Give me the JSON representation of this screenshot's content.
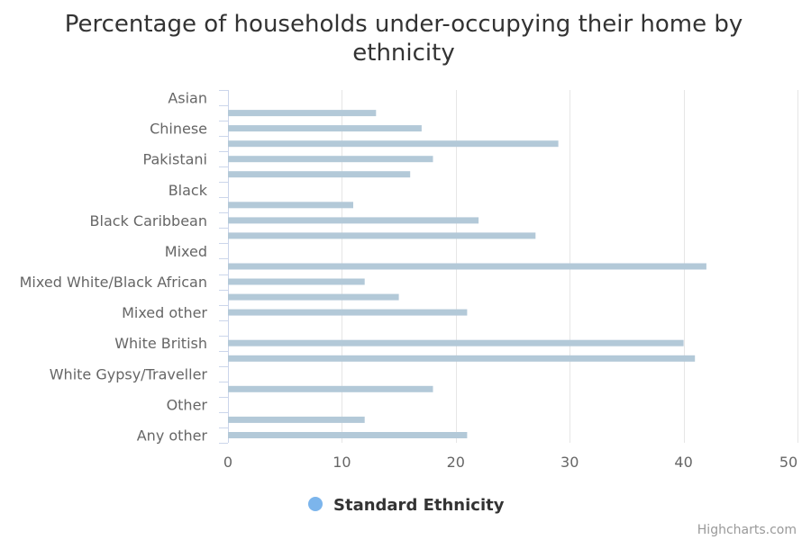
{
  "chart_data": {
    "type": "bar",
    "orientation": "horizontal",
    "title": "Percentage of households under-occupying their home by ethnicity",
    "title_lines": [
      "Percentage of households under-occupying their home by",
      "ethnicity"
    ],
    "category_labels": [
      "Asian",
      "",
      "Chinese",
      "",
      "Pakistani",
      "",
      "Black",
      "",
      "Black Caribbean",
      "",
      "Mixed",
      "",
      "Mixed White/Black African",
      "",
      "Mixed other",
      "",
      "White British",
      "",
      "White Gypsy/Traveller",
      "",
      "Other",
      "",
      "Any other"
    ],
    "series": [
      {
        "name": "Standard Ethnicity",
        "color": "#b3c9d8",
        "values": [
          null,
          13,
          17,
          29,
          18,
          16,
          null,
          11,
          22,
          27,
          null,
          42,
          12,
          15,
          21,
          null,
          40,
          41,
          null,
          18,
          null,
          12,
          21
        ]
      }
    ],
    "xlim": [
      0,
      50
    ],
    "x_ticks": [
      0,
      10,
      20,
      30,
      40,
      50
    ],
    "grid": true,
    "legend_position": "bottom",
    "legend_marker_color": "#7cb5ec"
  },
  "legend": {
    "label": "Standard Ethnicity"
  },
  "credits": "Highcharts.com"
}
